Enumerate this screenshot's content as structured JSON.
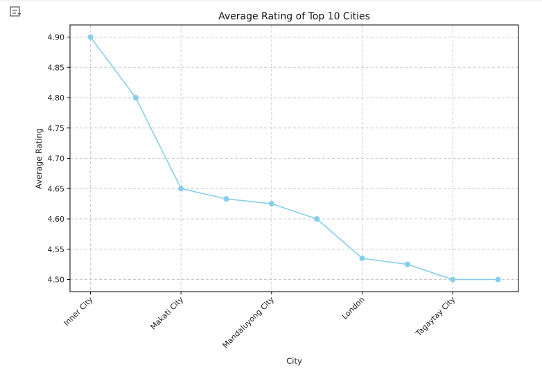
{
  "toolbar": {
    "icon": "output-toggle-icon"
  },
  "chart_data": {
    "type": "line",
    "title": "Average Rating of Top 10 Cities",
    "xlabel": "City",
    "ylabel": "Average Rating",
    "x_tick_labels": [
      "Inner City",
      "Makati City",
      "Mandaluyong City",
      "London",
      "Tagaytay City"
    ],
    "x_tick_positions": [
      0,
      2,
      4,
      6,
      8
    ],
    "values": [
      4.9,
      4.8,
      4.65,
      4.633,
      4.625,
      4.6,
      4.535,
      4.525,
      4.5,
      4.5
    ],
    "ylim": [
      4.48,
      4.92
    ],
    "y_ticks": [
      "4.50",
      "4.55",
      "4.60",
      "4.65",
      "4.70",
      "4.75",
      "4.80",
      "4.85",
      "4.90"
    ],
    "grid": true,
    "legend": "none",
    "colors": {
      "line": "#87ceeb",
      "grid": "#c8c8c8",
      "axis": "#000000"
    }
  }
}
